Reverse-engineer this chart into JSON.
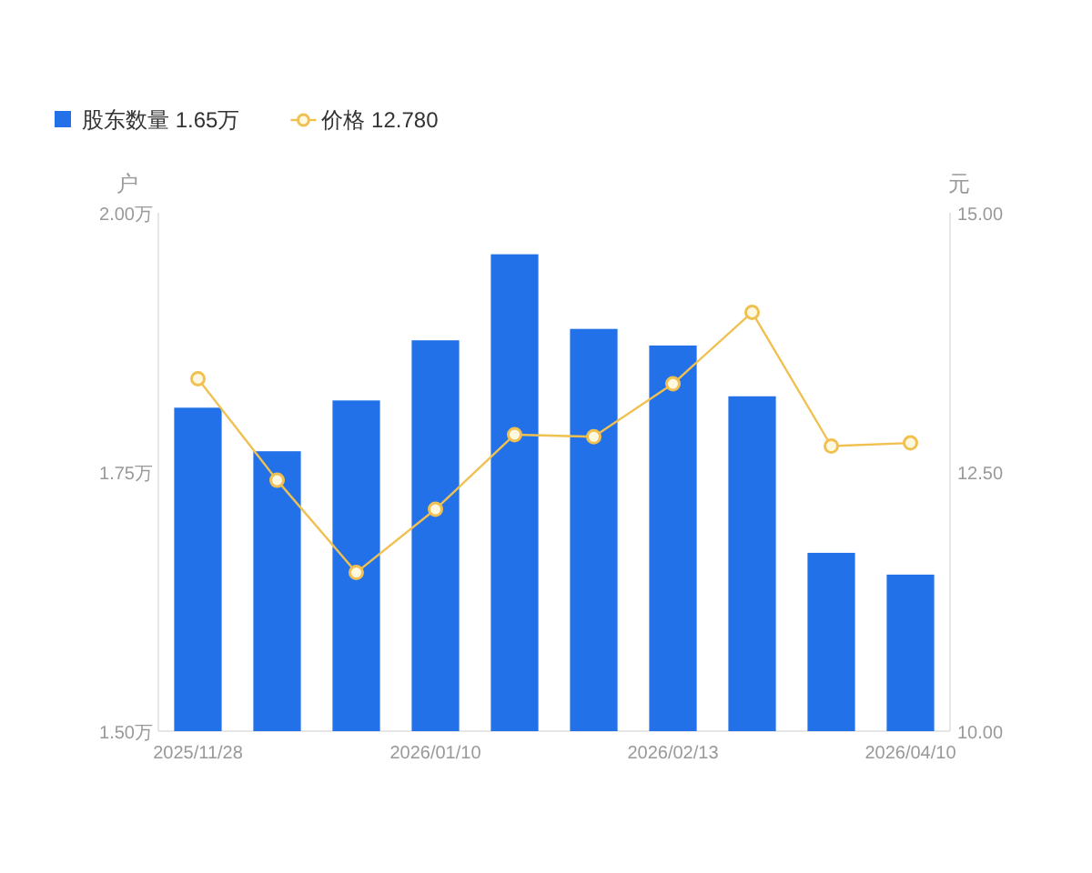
{
  "chart_data": {
    "type": "bar",
    "ylabel": "户",
    "y2label": "元",
    "categories": [
      "2025/11/28",
      null,
      null,
      "2026/01/10",
      null,
      null,
      "2026/02/13",
      null,
      null,
      "2026/04/10"
    ],
    "series": [
      {
        "name": "股东数量 1.65万",
        "color": "#2271e8",
        "values": [
          1.812,
          1.77,
          1.819,
          1.877,
          1.96,
          1.888,
          1.872,
          1.823,
          1.672,
          1.651
        ]
      },
      {
        "name": "价格 12.780",
        "type": "line",
        "axis": "y2",
        "color": "#f0c050",
        "marker": "circle",
        "values": [
          13.4,
          12.42,
          11.53,
          12.14,
          12.86,
          12.84,
          13.35,
          14.04,
          12.75,
          12.78
        ]
      }
    ],
    "ylim": [
      1.5,
      2.0
    ],
    "yticks": [
      {
        "value": 1.5,
        "label": "1.50万"
      },
      {
        "value": 1.75,
        "label": "1.75万"
      },
      {
        "value": 2.0,
        "label": "2.00万"
      }
    ],
    "y2lim": [
      10,
      15
    ],
    "y2ticks": [
      {
        "value": 10,
        "label": "10.00"
      },
      {
        "value": 12.5,
        "label": "12.50"
      },
      {
        "value": 15,
        "label": "15.00"
      }
    ],
    "legend": "top left"
  }
}
